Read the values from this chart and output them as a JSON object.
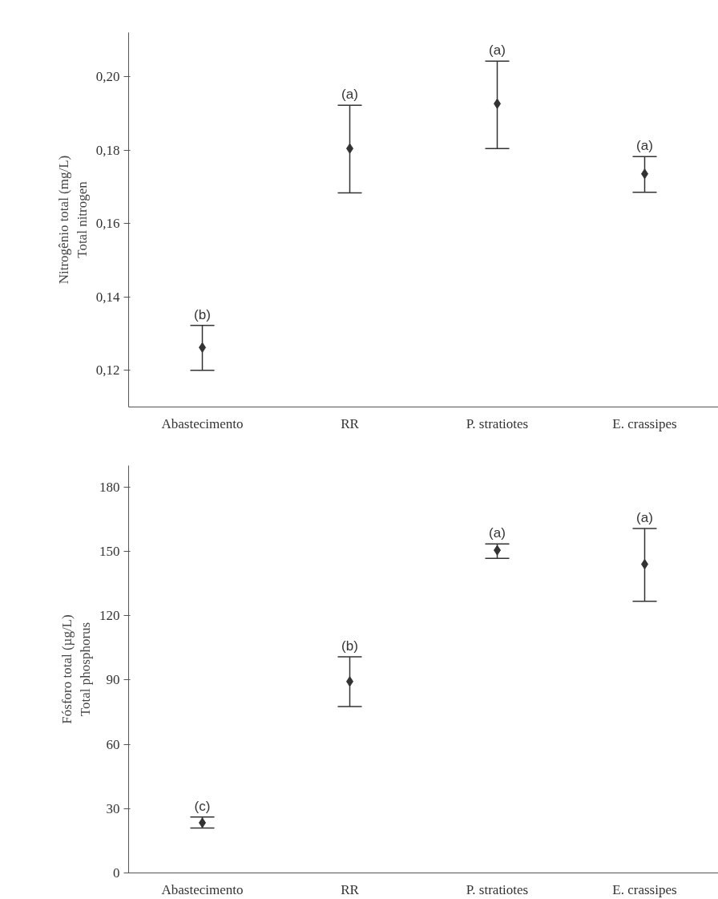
{
  "chart_data": [
    {
      "type": "scatter",
      "ylabel": "Nitrogênio total (mg/L)\nTotal nitrogen",
      "categories": [
        "Abastecimento",
        "RR",
        "P. stratiotes",
        "E. crassipes"
      ],
      "color": "#333333",
      "values": [
        0.1262,
        0.1804,
        0.1926,
        0.1735
      ],
      "errors": [
        [
          0.12,
          0.1322
        ],
        [
          0.1683,
          0.1922
        ],
        [
          0.1804,
          0.2042
        ],
        [
          0.1685,
          0.1782
        ]
      ],
      "ylim": [
        0.11,
        0.212
      ],
      "yticks": [
        {
          "value": 0.12,
          "label": "0,12"
        },
        {
          "value": 0.14,
          "label": "0,14"
        },
        {
          "value": 0.16,
          "label": "0,16"
        },
        {
          "value": 0.18,
          "label": "0,18"
        },
        {
          "value": 0.2,
          "label": "0,20"
        }
      ],
      "marker": "diamond",
      "grid": false,
      "annotations": [
        {
          "text": "(b)",
          "x": "Abastecimento",
          "y": 0.1322
        },
        {
          "text": "(a)",
          "x": "RR",
          "y": 0.1922
        },
        {
          "text": "(a)",
          "x": "P. stratiotes",
          "y": 0.2042
        },
        {
          "text": "(a)",
          "x": "E. crassipes",
          "y": 0.1782
        }
      ]
    },
    {
      "type": "scatter",
      "ylabel": "Fósforo total (µg/L)\nTotal phosphorus",
      "categories": [
        "Abastecimento",
        "RR",
        "P. stratiotes",
        "E. crassipes"
      ],
      "color": "#333333",
      "values": [
        23.4,
        89.3,
        150.5,
        144
      ],
      "errors": [
        [
          20.9,
          26.1
        ],
        [
          77.6,
          100.8
        ],
        [
          146.7,
          153.4
        ],
        [
          126.7,
          160.6
        ]
      ],
      "ylim": [
        0,
        190
      ],
      "yticks": [
        0,
        30,
        60,
        90,
        120,
        150,
        180
      ],
      "marker": "diamond",
      "grid": false,
      "annotations": [
        {
          "text": "(c)",
          "x": "Abastecimento",
          "y": 26.1
        },
        {
          "text": "(b)",
          "x": "RR",
          "y": 100.8
        },
        {
          "text": "(a)",
          "x": "P. stratiotes",
          "y": 153.4
        },
        {
          "text": "(a)",
          "x": "E. crassipes",
          "y": 160.6
        }
      ]
    }
  ]
}
